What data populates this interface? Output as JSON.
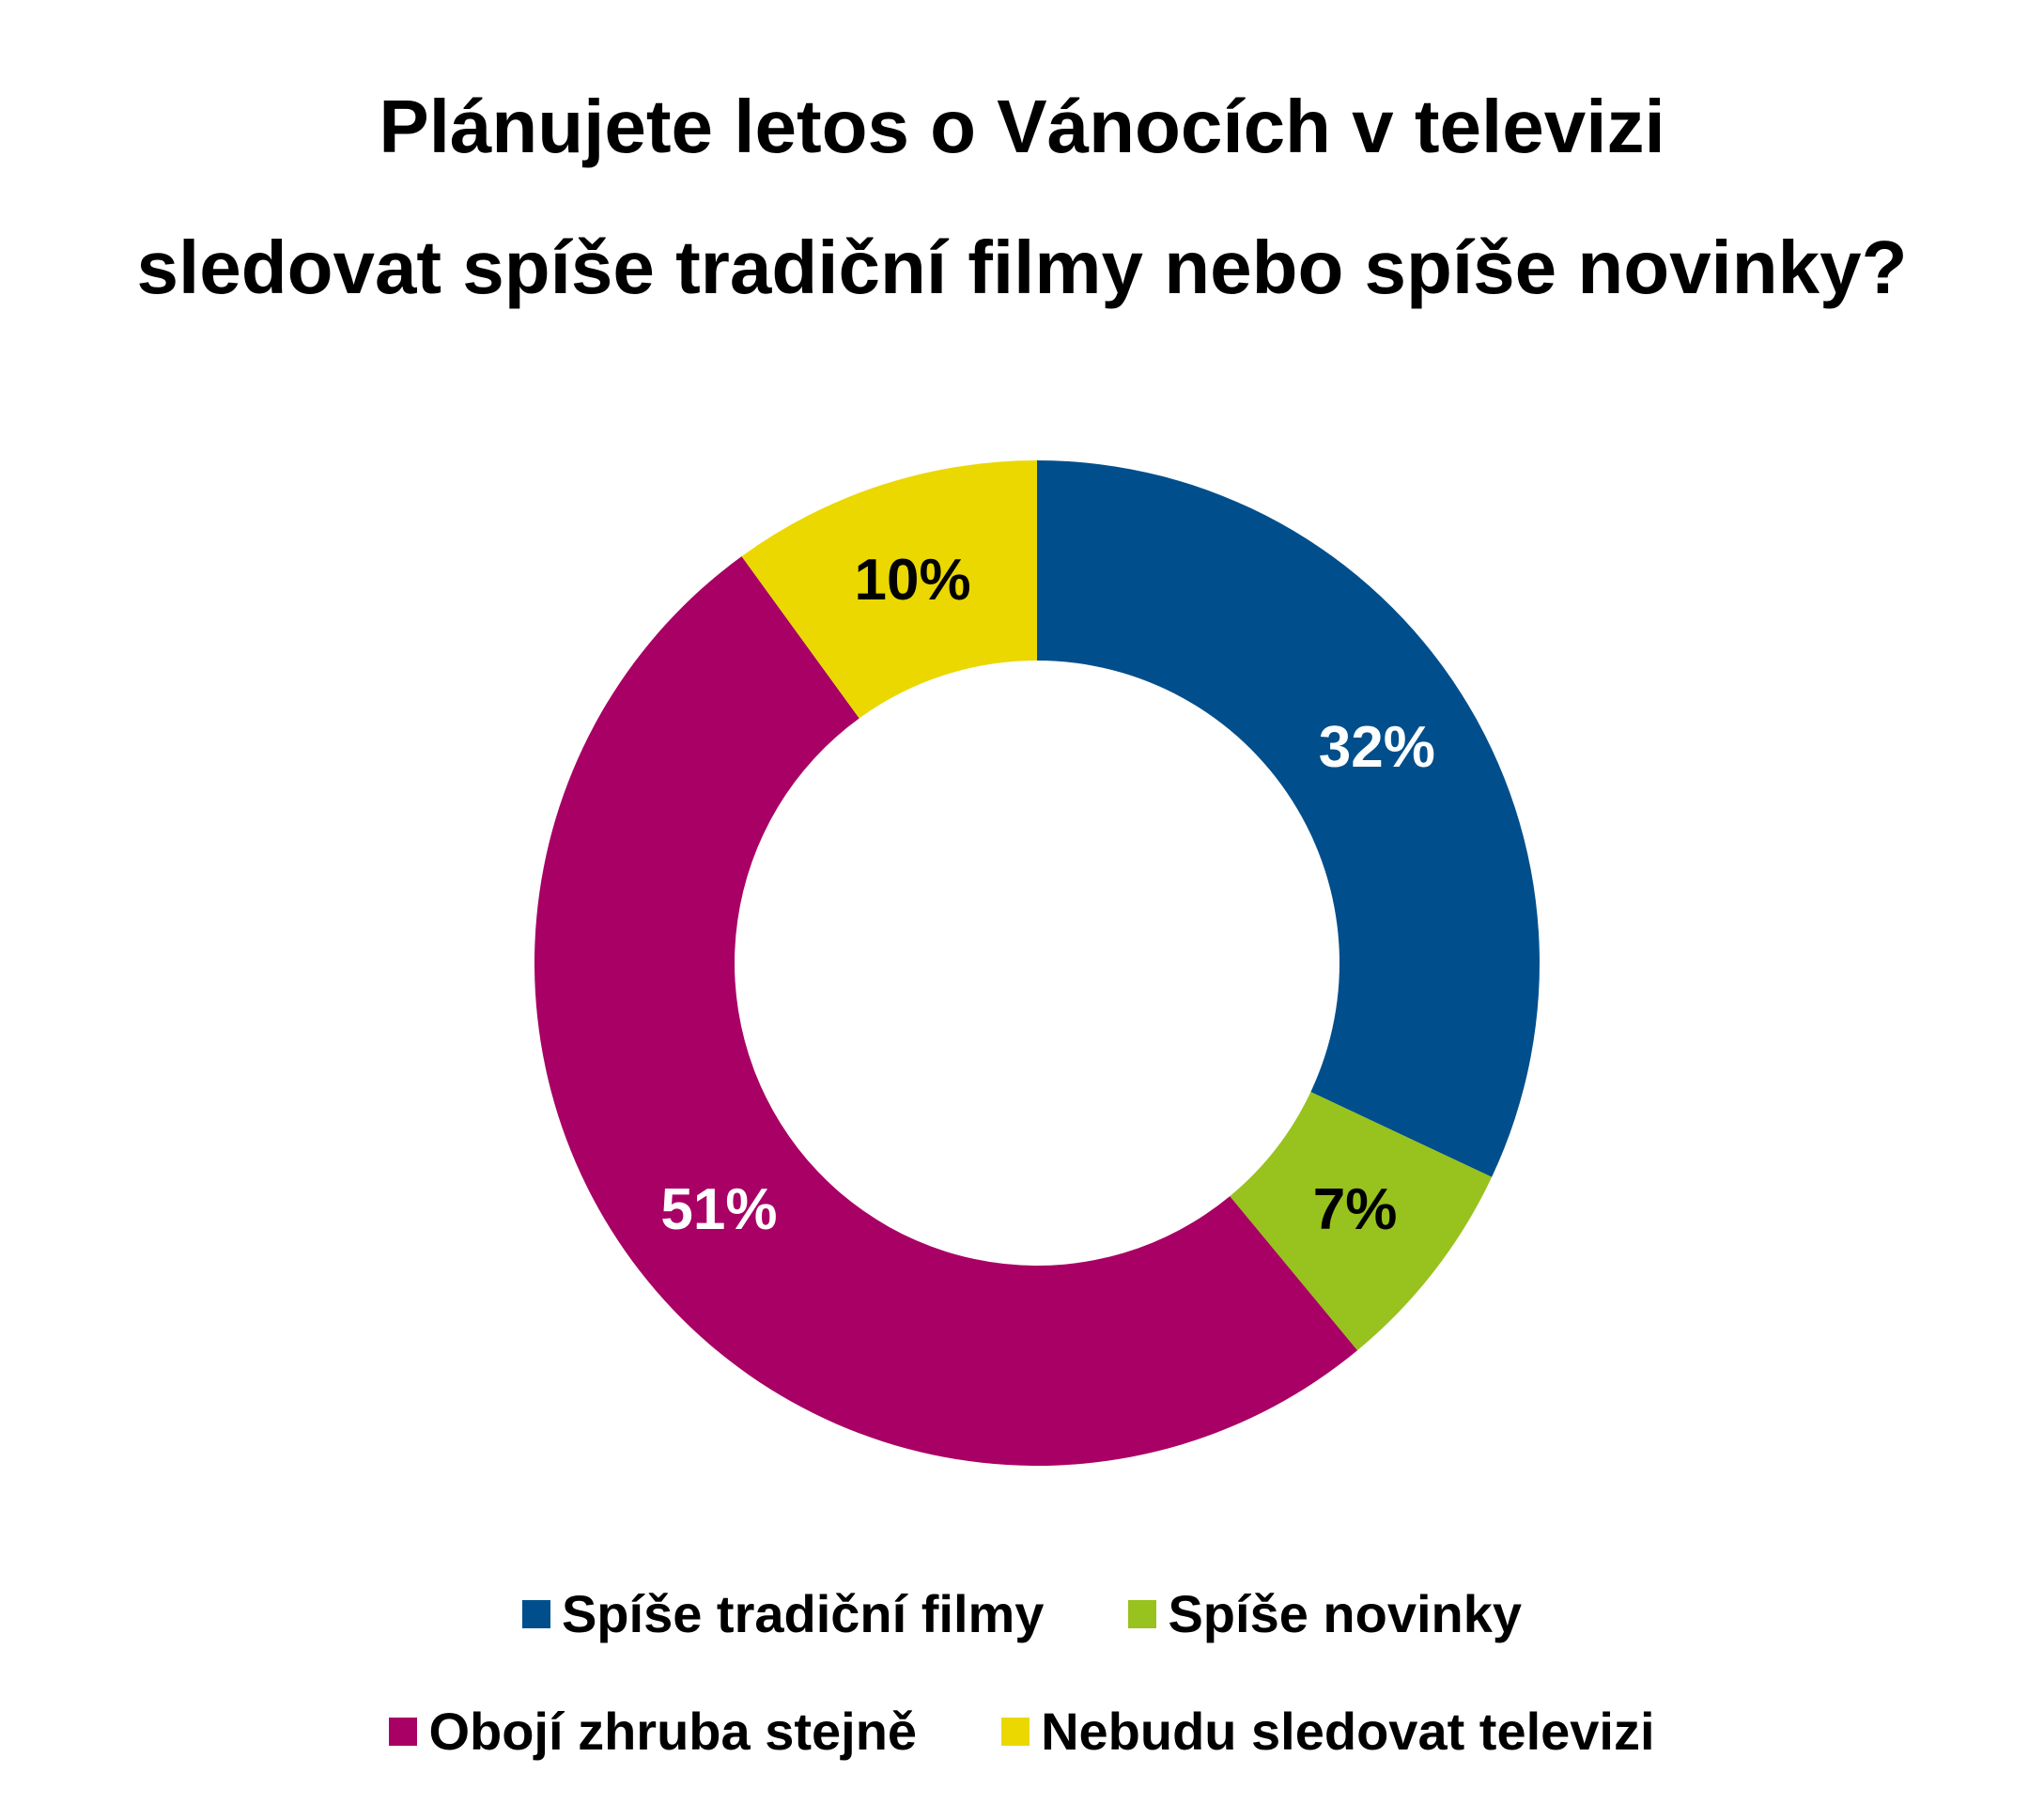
{
  "chart_data": {
    "type": "pie",
    "variant": "donut",
    "title": [
      "Plánujete letos o Vánocích v televizi",
      "sledovat spíše tradiční filmy nebo spíše novinky?"
    ],
    "categories": [
      "Spíše tradiční filmy",
      "Spíše novinky",
      "Obojí zhruba stejně",
      "Nebudu sledovat televizi"
    ],
    "values": [
      32,
      7,
      51,
      10
    ],
    "labels": [
      "32%",
      "7%",
      "51%",
      "10%"
    ],
    "colors": [
      "#004f8c",
      "#98c21d",
      "#a80064",
      "#ead800"
    ],
    "label_colors": [
      "#ffffff",
      "#000000",
      "#ffffff",
      "#000000"
    ],
    "legend_position": "bottom"
  }
}
